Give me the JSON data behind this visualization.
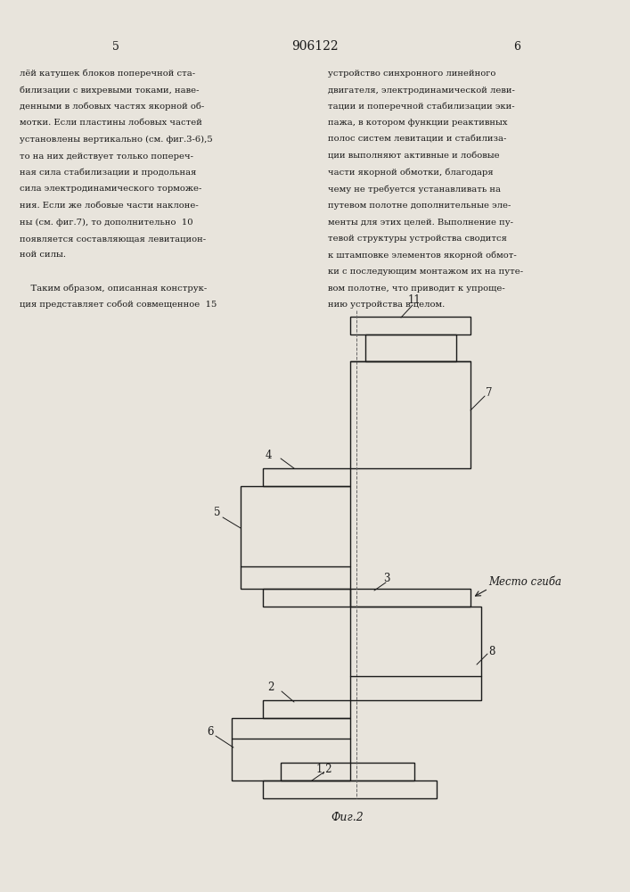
{
  "page_number_left": "5",
  "page_number_center": "906122",
  "page_number_right": "6",
  "text_left_col": [
    "лёй катушек блоков поперечной ста-",
    "билизации с вихревыми токами, наве-",
    "денными в лобовых частях якорной об-",
    "мотки. Если пластины лобовых частей",
    "установлены вертикально (см. фиг.3-6),5",
    "то на них действует только попереч-",
    "ная сила стабилизации и продольная",
    "сила электродинамического торможе-",
    "ния. Если же лобовые части наклоне-",
    "ны (см. фиг.7), то дополнительно  10",
    "появляется составляющая левитацион-",
    "ной силы.",
    "",
    "    Таким образом, описанная конструк-",
    "ция представляет собой совмещенное  15"
  ],
  "text_right_col": [
    "устройство синхронного линейного",
    "двигателя, электродинамической леви-",
    "тации и поперечной стабилизации эки-",
    "пажа, в котором функции реактивных",
    "полос систем левитации и стабилиза-",
    "ции выполняют активные и лобовые",
    "части якорной обмотки, благодаря",
    "чему не требуется устанавливать на",
    "путевом полотне дополнительные эле-",
    "менты для этих целей. Выполнение пу-",
    "тевой структуры устройства сводится",
    "к штамповке элементов якорной обмот-",
    "ки с последующим монтажом их на путе-",
    "вом полотне, что приводит к упроще-",
    "нию устройства в целом."
  ],
  "fig_caption": "Фиг.2",
  "annotation_bend": "Место сгиба",
  "bg_color": "#e8e4dc",
  "line_color": "#1a1a1a",
  "text_color": "#1a1a1a"
}
